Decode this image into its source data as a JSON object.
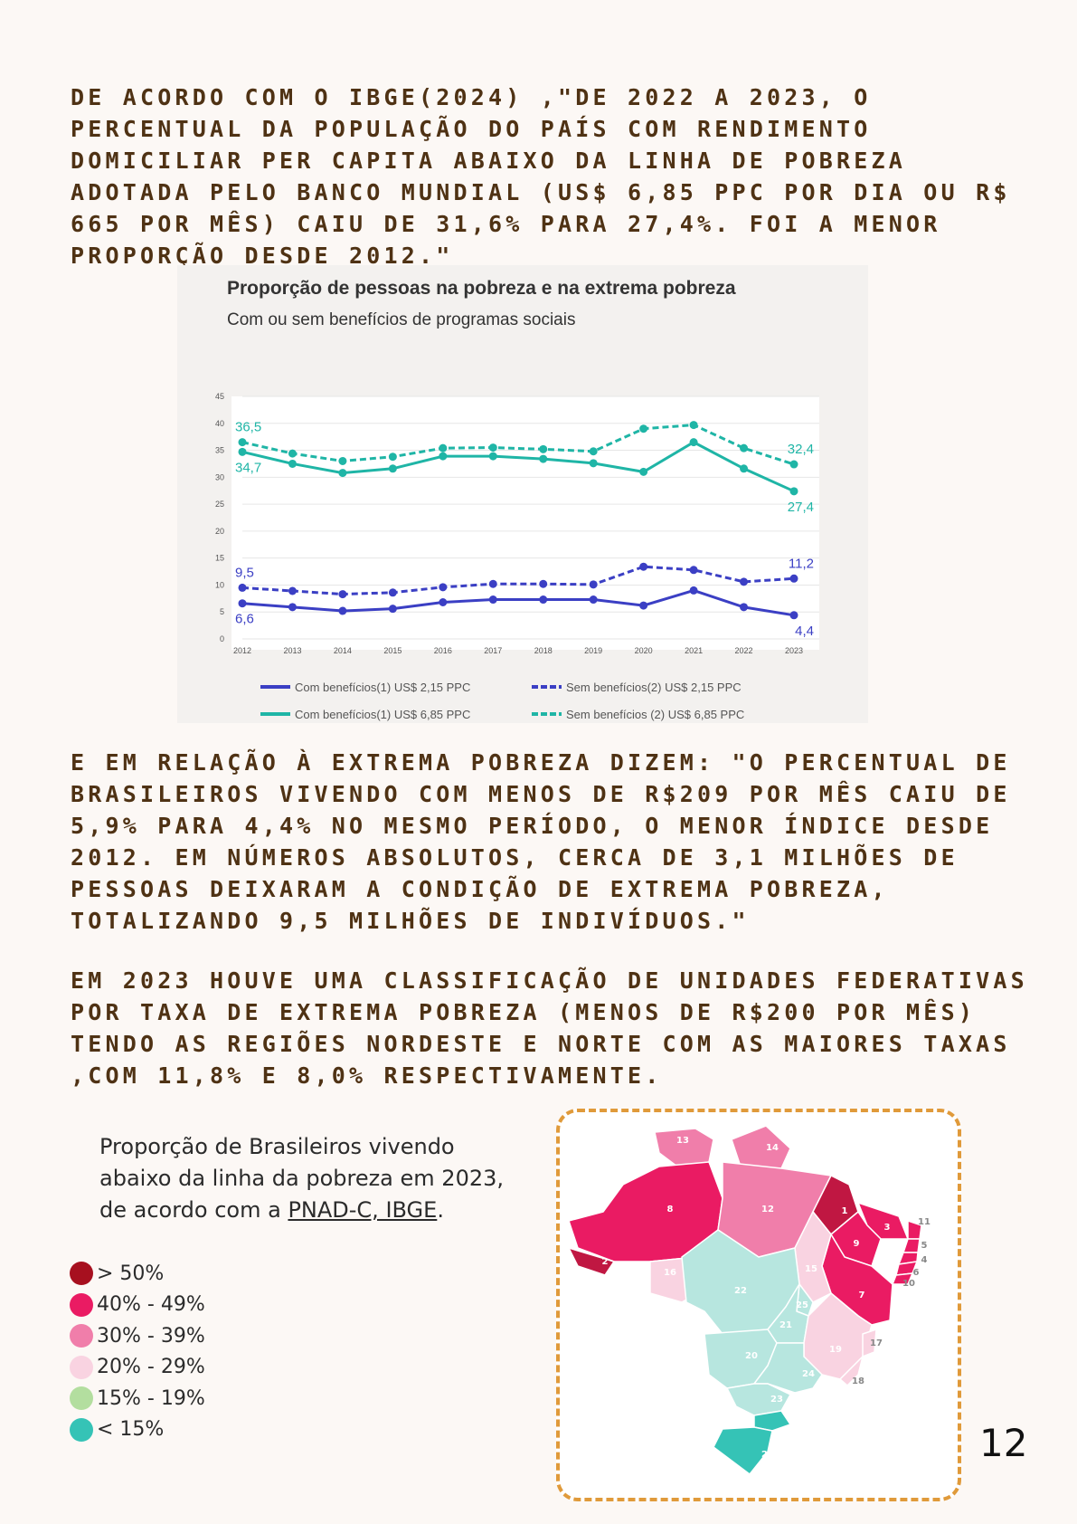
{
  "paragraphs": {
    "p1": "DE ACORDO COM O IBGE(2024) ,\"DE 2022 A 2023, O PERCENTUAL DA POPULAÇÃO DO PAÍS COM RENDIMENTO DOMICILIAR PER CAPITA ABAIXO DA LINHA DE POBREZA ADOTADA PELO BANCO MUNDIAL (US$ 6,85 PPC POR DIA OU R$ 665 POR MÊS) CAIU DE 31,6% PARA 27,4%. FOI A MENOR PROPORÇÃO DESDE 2012.\"",
    "p2": "E EM RELAÇÃO À EXTREMA POBREZA DIZEM: \"O PERCENTUAL DE BRASILEIROS VIVENDO COM MENOS DE R$209 POR MÊS CAIU DE 5,9% PARA 4,4% NO MESMO PERÍODO, O MENOR ÍNDICE DESDE 2012. EM NÚMEROS ABSOLUTOS, CERCA DE 3,1 MILHÕES DE PESSOAS DEIXARAM A CONDIÇÃO DE EXTREMA POBREZA, TOTALIZANDO 9,5 MILHÕES DE INDIVÍDUOS.\"",
    "p3": "EM 2023 HOUVE UMA CLASSIFICAÇÃO DE UNIDADES FEDERATIVAS POR TAXA DE EXTREMA POBREZA (MENOS DE R$200 POR MÊS) TENDO AS REGIÕES NORDESTE E NORTE COM AS MAIORES TAXAS ,COM 11,8% E 8,0% RESPECTIVAMENTE."
  },
  "chart_data": {
    "type": "line",
    "title": "Proporção de pessoas na pobreza e na extrema pobreza",
    "subtitle": "Com ou sem benefícios de programas sociais",
    "x": [
      "2012",
      "2013",
      "2014",
      "2015",
      "2016",
      "2017",
      "2018",
      "2019",
      "2020",
      "2021",
      "2022",
      "2023"
    ],
    "ylim": [
      0,
      45
    ],
    "yticks": [
      "0",
      "5",
      "10",
      "15",
      "20",
      "25",
      "30",
      "35",
      "40",
      "45"
    ],
    "grid": true,
    "legend_position": "bottom",
    "series": [
      {
        "name": "Com benefícios(1)  US$ 2,15 PPC",
        "color": "#3b3fc4",
        "dashed": false,
        "values": [
          6.6,
          5.9,
          5.2,
          5.6,
          6.8,
          7.3,
          7.3,
          7.3,
          6.2,
          9.0,
          5.9,
          4.4
        ]
      },
      {
        "name": "Sem benefícios(2) US$ 2,15 PPC",
        "color": "#3b3fc4",
        "dashed": true,
        "values": [
          9.5,
          8.9,
          8.3,
          8.6,
          9.6,
          10.2,
          10.2,
          10.1,
          13.4,
          12.8,
          10.6,
          11.2
        ]
      },
      {
        "name": "Com benefícios(1) US$ 6,85 PPC",
        "color": "#1fb5a6",
        "dashed": false,
        "values": [
          34.7,
          32.5,
          30.8,
          31.6,
          33.9,
          33.9,
          33.4,
          32.6,
          31.0,
          36.5,
          31.6,
          27.4
        ]
      },
      {
        "name": "Sem benefícios (2) US$ 6,85 PPC",
        "color": "#1fb5a6",
        "dashed": true,
        "values": [
          36.5,
          34.4,
          33.0,
          33.8,
          35.4,
          35.5,
          35.2,
          34.8,
          39.0,
          39.7,
          35.4,
          32.4
        ]
      }
    ],
    "annotations": [
      {
        "series": 3,
        "index": 0,
        "label": "36,5",
        "pos": "above"
      },
      {
        "series": 2,
        "index": 0,
        "label": "34,7",
        "pos": "below"
      },
      {
        "series": 3,
        "index": 11,
        "label": "32,4",
        "pos": "above"
      },
      {
        "series": 2,
        "index": 11,
        "label": "27,4",
        "pos": "below"
      },
      {
        "series": 1,
        "index": 0,
        "label": "9,5",
        "pos": "above"
      },
      {
        "series": 0,
        "index": 0,
        "label": "6,6",
        "pos": "below"
      },
      {
        "series": 1,
        "index": 11,
        "label": "11,2",
        "pos": "above"
      },
      {
        "series": 0,
        "index": 11,
        "label": "4,4",
        "pos": "below"
      }
    ]
  },
  "legend": {
    "title_text": "Proporção de Brasileiros vivendo abaixo da linha da pobreza em 2023, de acordo com a ",
    "source": "PNAD-C, IBGE",
    "title_end": ".",
    "items": [
      {
        "label": "> 50%",
        "color": "#a7101f"
      },
      {
        "label": "40% - 49%",
        "color": "#ea1b63"
      },
      {
        "label": "30% - 39%",
        "color": "#f07eaa"
      },
      {
        "label": "20% - 29%",
        "color": "#f9d3e1"
      },
      {
        "label": "15% - 19%",
        "color": "#b3de9f"
      },
      {
        "label": "< 15%",
        "color": "#35c3b6"
      }
    ]
  },
  "map": {
    "labels": [
      "1",
      "2",
      "3",
      "4",
      "5",
      "6",
      "7",
      "8",
      "9",
      "10",
      "11",
      "12",
      "13",
      "14",
      "15",
      "16",
      "17",
      "18",
      "19",
      "20",
      "21",
      "22",
      "23",
      "24",
      "25",
      "26",
      "27"
    ]
  },
  "page_number": "12"
}
